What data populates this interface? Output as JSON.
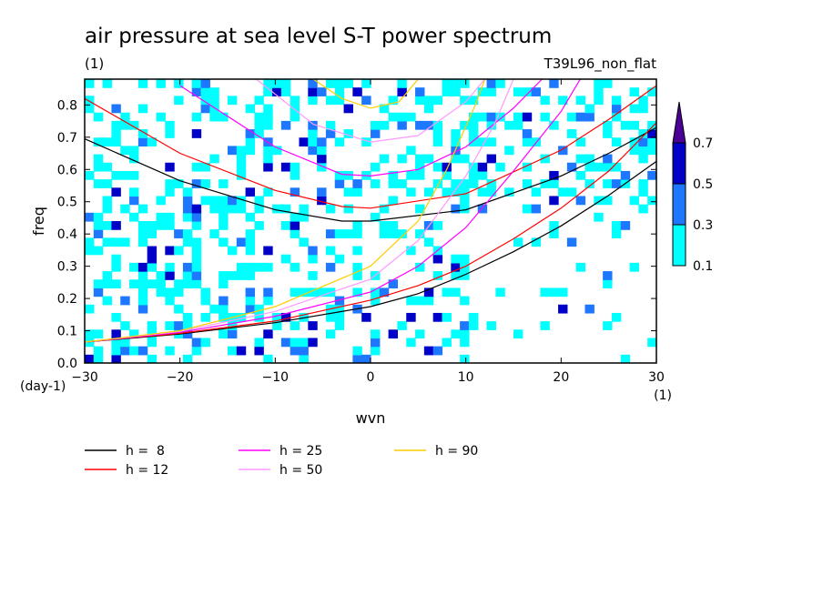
{
  "chart_data": {
    "type": "heatmap",
    "title": "air pressure at sea level S-T power spectrum",
    "subtitle_left": "(1)",
    "subtitle_right": "T39L96_non_flat",
    "xlabel": "wvn",
    "ylabel": "freq",
    "x_unit": "(1)",
    "y_unit": "(day-1)",
    "xlim": [
      -30,
      30
    ],
    "ylim": [
      0,
      0.88
    ],
    "x_ticks": [
      -30,
      -20,
      -10,
      0,
      10,
      20,
      30
    ],
    "y_ticks": [
      0.0,
      0.1,
      0.2,
      0.3,
      0.4,
      0.5,
      0.6,
      0.7,
      0.8
    ],
    "colorbar": {
      "levels": [
        0.1,
        0.3,
        0.5,
        0.7
      ],
      "colors": [
        "#00ffff",
        "#1e78ff",
        "#0000c8",
        "#4b0096"
      ]
    },
    "series": [
      {
        "name": "h =  8",
        "color": "#000000",
        "branches": [
          [
            [
              -30,
              0.695
            ],
            [
              -20,
              0.565
            ],
            [
              -10,
              0.475
            ],
            [
              -3,
              0.44
            ],
            [
              0,
              0.44
            ],
            [
              10,
              0.475
            ],
            [
              20,
              0.58
            ],
            [
              25,
              0.65
            ],
            [
              30,
              0.73
            ]
          ],
          [
            [
              -30,
              0.065
            ],
            [
              -20,
              0.09
            ],
            [
              -10,
              0.125
            ],
            [
              0,
              0.175
            ],
            [
              5,
              0.215
            ],
            [
              10,
              0.275
            ],
            [
              15,
              0.345
            ],
            [
              20,
              0.425
            ],
            [
              25,
              0.52
            ],
            [
              30,
              0.625
            ]
          ]
        ]
      },
      {
        "name": "h = 12",
        "color": "#ff0000",
        "branches": [
          [
            [
              -30,
              0.82
            ],
            [
              -20,
              0.65
            ],
            [
              -10,
              0.535
            ],
            [
              -3,
              0.485
            ],
            [
              0,
              0.48
            ],
            [
              10,
              0.525
            ],
            [
              20,
              0.66
            ],
            [
              25,
              0.755
            ],
            [
              30,
              0.86
            ]
          ],
          [
            [
              -30,
              0.065
            ],
            [
              -20,
              0.092
            ],
            [
              -10,
              0.13
            ],
            [
              0,
              0.195
            ],
            [
              5,
              0.24
            ],
            [
              10,
              0.3
            ],
            [
              15,
              0.385
            ],
            [
              20,
              0.48
            ],
            [
              25,
              0.595
            ],
            [
              30,
              0.745
            ]
          ]
        ]
      },
      {
        "name": "h = 25",
        "color": "#ff00ff",
        "branches": [
          [
            [
              -20,
              0.86
            ],
            [
              -10,
              0.67
            ],
            [
              -3,
              0.585
            ],
            [
              0,
              0.58
            ],
            [
              5,
              0.6
            ],
            [
              10,
              0.67
            ],
            [
              15,
              0.79
            ],
            [
              18,
              0.88
            ]
          ],
          [
            [
              -30,
              0.065
            ],
            [
              -20,
              0.095
            ],
            [
              -10,
              0.145
            ],
            [
              0,
              0.22
            ],
            [
              5,
              0.3
            ],
            [
              10,
              0.42
            ],
            [
              15,
              0.595
            ],
            [
              20,
              0.78
            ],
            [
              22,
              0.88
            ]
          ]
        ]
      },
      {
        "name": "h = 50",
        "color": "#ff99ff",
        "branches": [
          [
            [
              -12,
              0.88
            ],
            [
              -6,
              0.74
            ],
            [
              0,
              0.685
            ],
            [
              5,
              0.705
            ],
            [
              10,
              0.81
            ],
            [
              12,
              0.88
            ]
          ],
          [
            [
              -30,
              0.065
            ],
            [
              -20,
              0.098
            ],
            [
              -10,
              0.16
            ],
            [
              0,
              0.26
            ],
            [
              5,
              0.38
            ],
            [
              10,
              0.58
            ],
            [
              13,
              0.74
            ],
            [
              15,
              0.88
            ]
          ]
        ]
      },
      {
        "name": "h = 90",
        "color": "#ffcc00",
        "branches": [
          [
            [
              -6,
              0.88
            ],
            [
              -3,
              0.82
            ],
            [
              0,
              0.79
            ],
            [
              3,
              0.81
            ],
            [
              5,
              0.88
            ]
          ],
          [
            [
              -30,
              0.065
            ],
            [
              -20,
              0.1
            ],
            [
              -10,
              0.175
            ],
            [
              0,
              0.3
            ],
            [
              5,
              0.44
            ],
            [
              8,
              0.6
            ],
            [
              11,
              0.8
            ],
            [
              12,
              0.88
            ]
          ]
        ]
      }
    ]
  }
}
